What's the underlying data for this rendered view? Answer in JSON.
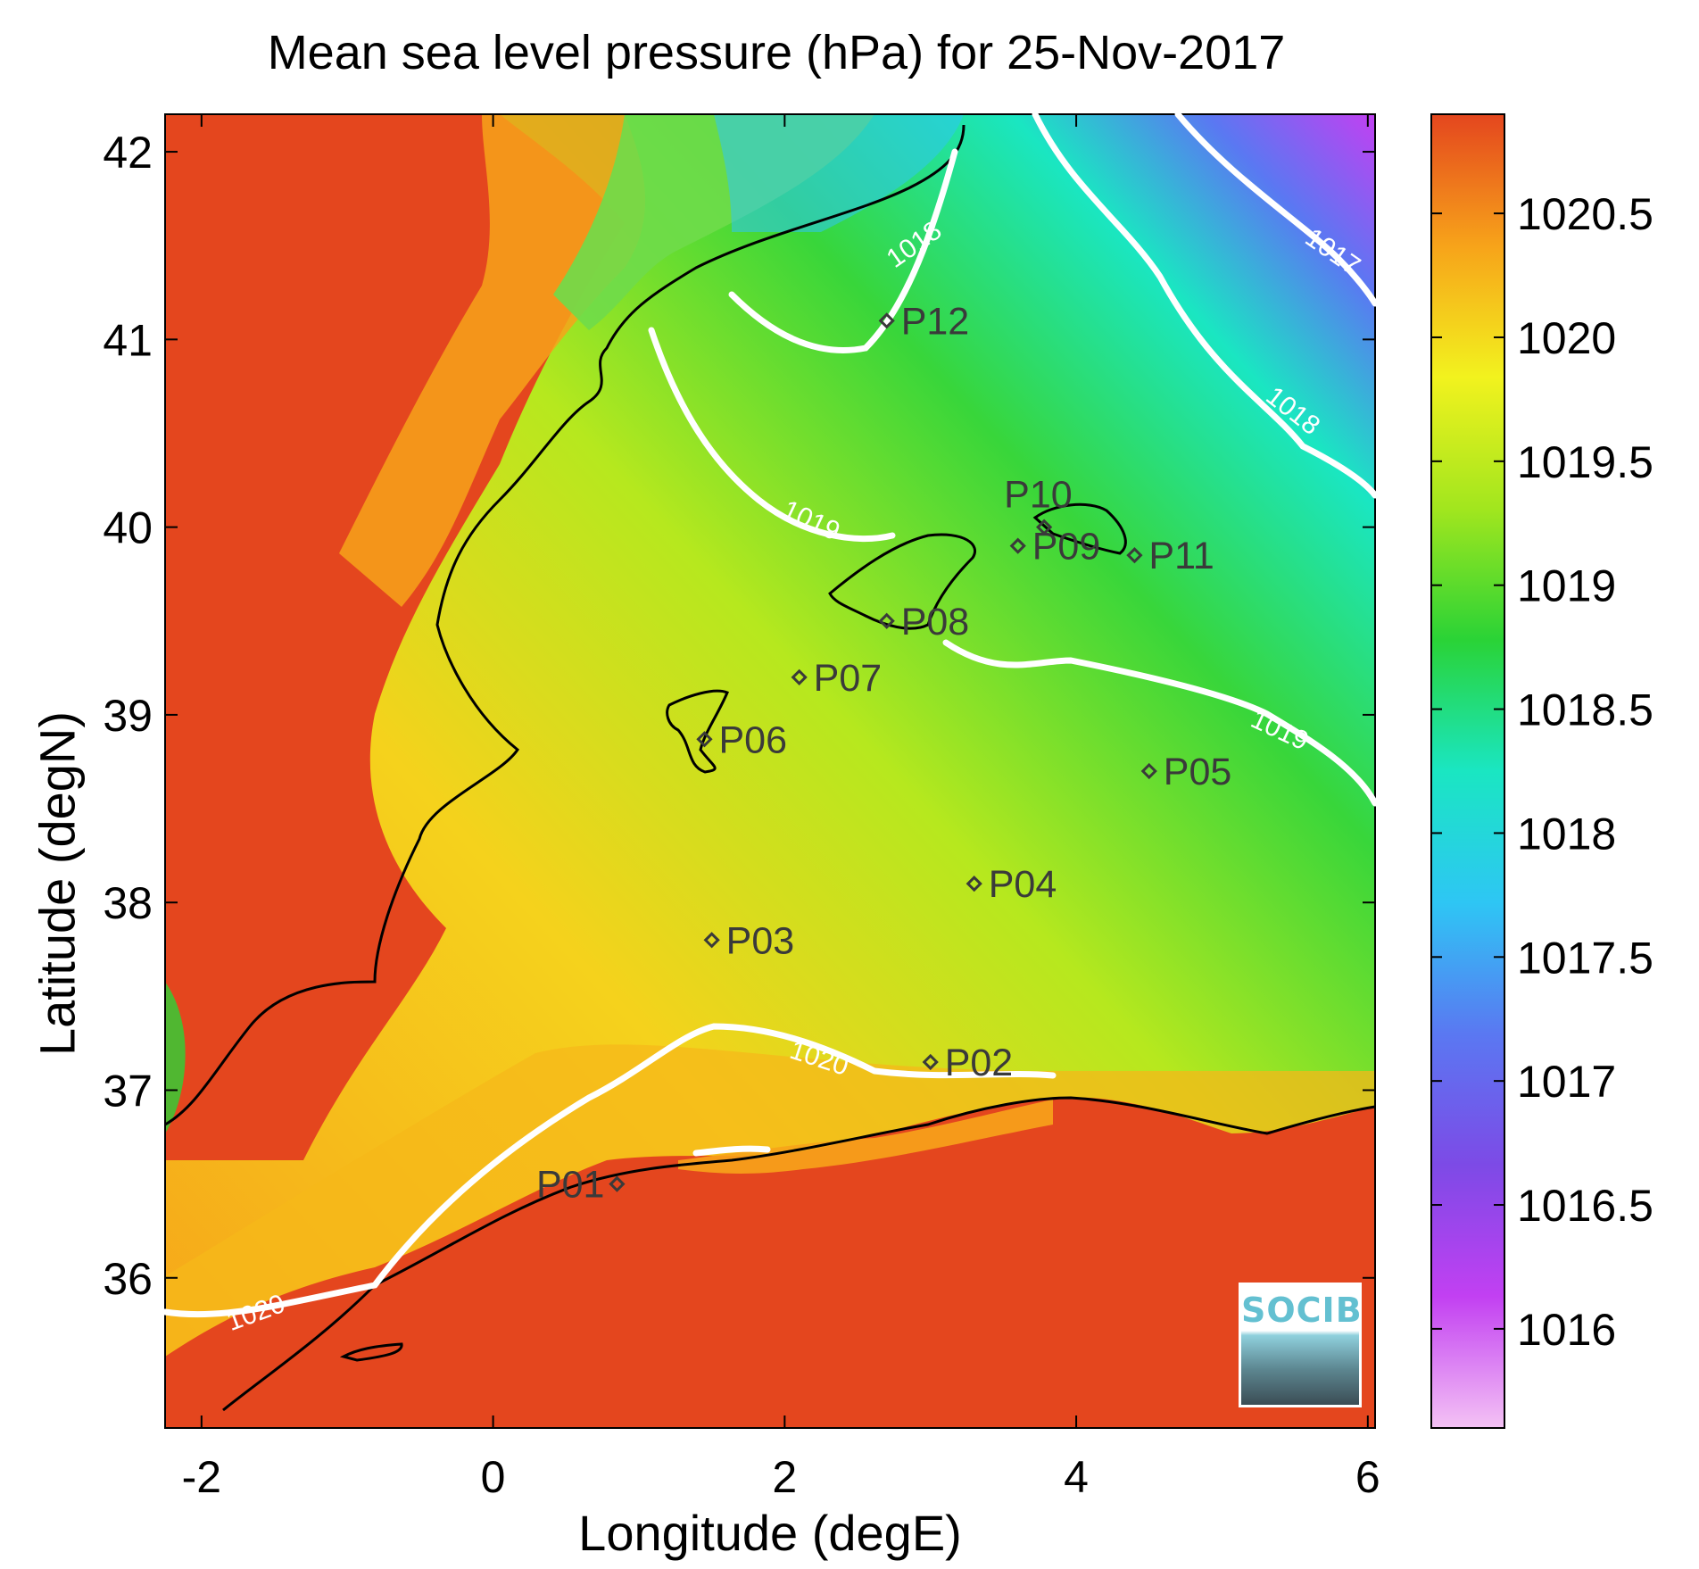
{
  "chart_data": {
    "type": "heatmap",
    "title": "Mean sea level pressure (hPa) for 25-Nov-2017",
    "xlabel": "Longitude (degE)",
    "ylabel": "Latitude (degN)",
    "xlim": [
      -2.25,
      6.05
    ],
    "ylim": [
      35.2,
      42.2
    ],
    "xticks": [
      -2,
      0,
      2,
      4,
      6
    ],
    "xtick_labels": [
      "-2",
      "0",
      "2",
      "4",
      "6"
    ],
    "yticks": [
      36,
      37,
      38,
      39,
      40,
      41,
      42
    ],
    "ytick_labels": [
      "36",
      "37",
      "38",
      "39",
      "40",
      "41",
      "42"
    ],
    "colorbar": {
      "range": [
        1015.6,
        1020.9
      ],
      "ticks": [
        1016,
        1016.5,
        1017,
        1017.5,
        1018,
        1018.5,
        1019,
        1019.5,
        1020,
        1020.5
      ],
      "tick_labels": [
        "1016",
        "1016.5",
        "1017",
        "1017.5",
        "1018",
        "1018.5",
        "1019",
        "1019.5",
        "1020",
        "1020.5"
      ],
      "colors": [
        "#f4c2f4",
        "#c240f2",
        "#7d4ae6",
        "#5a78f2",
        "#2ec6f4",
        "#1ae6c2",
        "#2ad336",
        "#a2e61e",
        "#f2f21e",
        "#f7a31a",
        "#e4461e"
      ]
    },
    "contours": [
      {
        "level": 1017,
        "label": "1017"
      },
      {
        "level": 1018,
        "label": "1018"
      },
      {
        "level": 1019,
        "label": "1019"
      },
      {
        "level": 1020,
        "label": "1020"
      }
    ],
    "stations": [
      {
        "name": "P01",
        "lon": 0.85,
        "lat": 36.5
      },
      {
        "name": "P02",
        "lon": 3.0,
        "lat": 37.15
      },
      {
        "name": "P03",
        "lon": 1.5,
        "lat": 37.8
      },
      {
        "name": "P04",
        "lon": 3.3,
        "lat": 38.1
      },
      {
        "name": "P05",
        "lon": 4.5,
        "lat": 38.7
      },
      {
        "name": "P06",
        "lon": 1.45,
        "lat": 38.87
      },
      {
        "name": "P07",
        "lon": 2.1,
        "lat": 39.2
      },
      {
        "name": "P08",
        "lon": 2.7,
        "lat": 39.5
      },
      {
        "name": "P09",
        "lon": 3.6,
        "lat": 39.9
      },
      {
        "name": "P10",
        "lon": 3.78,
        "lat": 40.0
      },
      {
        "name": "P11",
        "lon": 4.4,
        "lat": 39.85
      },
      {
        "name": "P12",
        "lon": 2.7,
        "lat": 41.1
      }
    ],
    "logo_text": "SOCIB"
  }
}
